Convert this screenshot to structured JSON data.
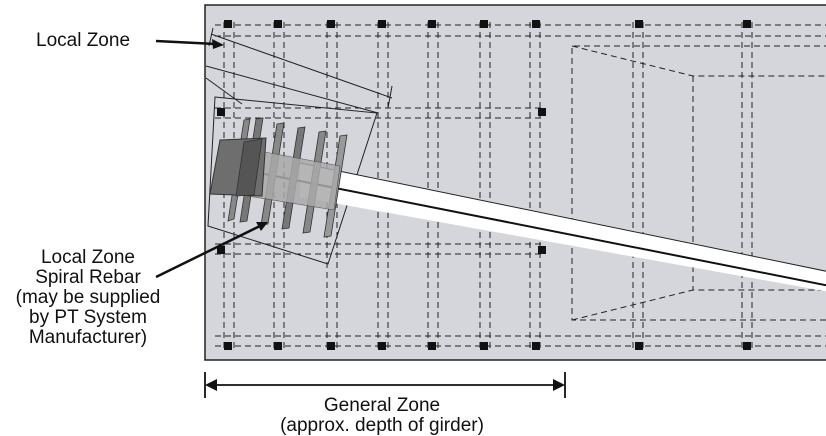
{
  "labels": {
    "local_zone": "Local Zone",
    "spiral": {
      "line1": "Local Zone",
      "line2": "Spiral Rebar",
      "line3": "(may be supplied",
      "line4": "by PT System",
      "line5": "Manufacturer)"
    },
    "general_zone": {
      "line1": "General Zone",
      "line2": "(approx. depth of girder)"
    }
  },
  "colors": {
    "concrete": "#d4d6dc",
    "outline": "#222222",
    "anchor": "#777777",
    "anchor_dark": "#555555",
    "tendon": "#ffffff"
  }
}
